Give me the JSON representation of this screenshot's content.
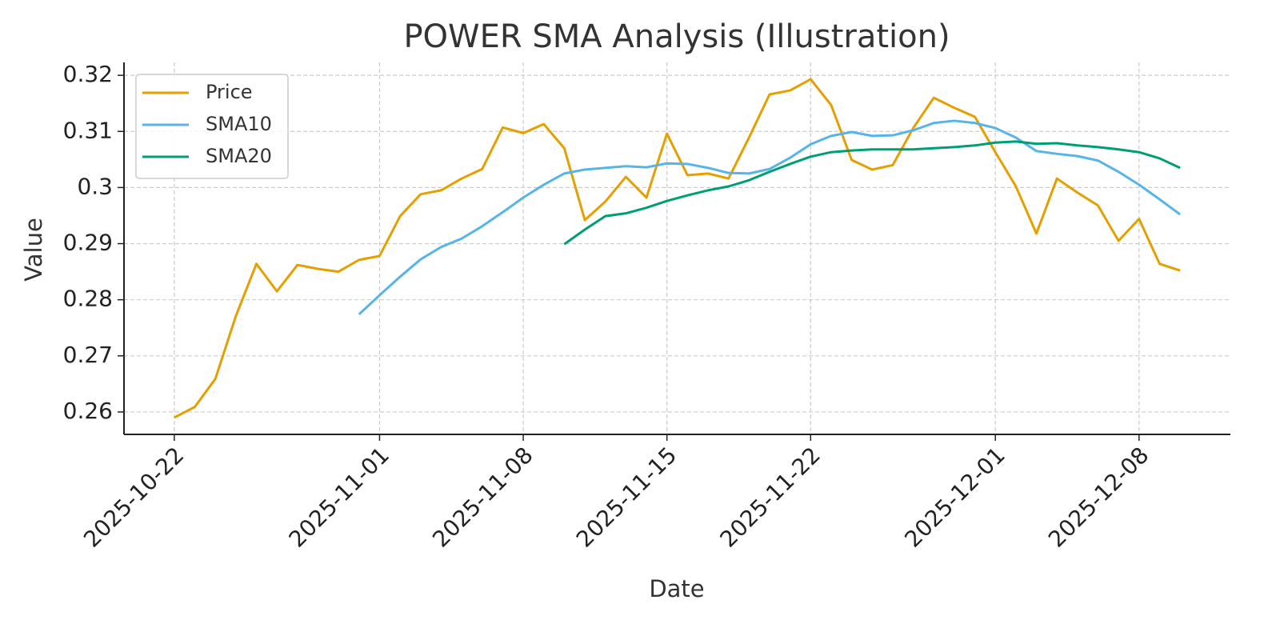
{
  "chart_data": {
    "type": "line",
    "title": "POWER SMA Analysis (Illustration)",
    "x_label": "Date",
    "y_label": "Value",
    "x": [
      "2025-10-22",
      "2025-10-23",
      "2025-10-24",
      "2025-10-25",
      "2025-10-26",
      "2025-10-27",
      "2025-10-28",
      "2025-10-29",
      "2025-10-30",
      "2025-10-31",
      "2025-11-01",
      "2025-11-02",
      "2025-11-03",
      "2025-11-04",
      "2025-11-05",
      "2025-11-06",
      "2025-11-07",
      "2025-11-08",
      "2025-11-09",
      "2025-11-10",
      "2025-11-11",
      "2025-11-12",
      "2025-11-13",
      "2025-11-14",
      "2025-11-15",
      "2025-11-16",
      "2025-11-17",
      "2025-11-18",
      "2025-11-19",
      "2025-11-20",
      "2025-11-21",
      "2025-11-22",
      "2025-11-23",
      "2025-11-24",
      "2025-11-25",
      "2025-11-26",
      "2025-11-27",
      "2025-11-28",
      "2025-11-29",
      "2025-11-30",
      "2025-12-01",
      "2025-12-02",
      "2025-12-03",
      "2025-12-04",
      "2025-12-05",
      "2025-12-06",
      "2025-12-07",
      "2025-12-08",
      "2025-12-09",
      "2025-12-10"
    ],
    "series": [
      {
        "name": "Price",
        "color": "#E69F00",
        "values": [
          0.259,
          0.2609,
          0.2659,
          0.2771,
          0.2864,
          0.2815,
          0.2862,
          0.2855,
          0.285,
          0.2871,
          0.2878,
          0.2949,
          0.2988,
          0.2995,
          0.3016,
          0.3033,
          0.3107,
          0.3097,
          0.3113,
          0.307,
          0.2942,
          0.2975,
          0.3019,
          0.2982,
          0.3096,
          0.3022,
          0.3025,
          0.3016,
          0.3089,
          0.3166,
          0.3173,
          0.3193,
          0.3147,
          0.3049,
          0.3032,
          0.304,
          0.3106,
          0.316,
          0.3142,
          0.3126,
          0.3063,
          0.3002,
          0.2918,
          0.3016,
          0.2991,
          0.2968,
          0.2905,
          0.2944,
          0.2864,
          0.2852
        ]
      },
      {
        "name": "SMA10",
        "color": "#56B4E9",
        "values": [
          null,
          null,
          null,
          null,
          null,
          null,
          null,
          null,
          null,
          0.2774,
          0.2808,
          0.2841,
          0.2872,
          0.2894,
          0.2909,
          0.2931,
          0.2956,
          0.2982,
          0.3005,
          0.3025,
          0.3032,
          0.3035,
          0.3038,
          0.3036,
          0.3043,
          0.3042,
          0.3035,
          0.3026,
          0.3025,
          0.3033,
          0.3053,
          0.3077,
          0.3092,
          0.3099,
          0.3092,
          0.3093,
          0.3102,
          0.3115,
          0.3119,
          0.3115,
          0.3106,
          0.3089,
          0.3065,
          0.306,
          0.3056,
          0.3048,
          0.3028,
          0.3005,
          0.2979,
          0.2952
        ]
      },
      {
        "name": "SMA20",
        "color": "#009E73",
        "values": [
          null,
          null,
          null,
          null,
          null,
          null,
          null,
          null,
          null,
          null,
          null,
          null,
          null,
          null,
          null,
          null,
          null,
          null,
          null,
          0.2899,
          0.2925,
          0.2949,
          0.2954,
          0.2964,
          0.2976,
          0.2986,
          0.2995,
          0.3002,
          0.3013,
          0.3028,
          0.3042,
          0.3055,
          0.3063,
          0.3066,
          0.3068,
          0.3068,
          0.3068,
          0.307,
          0.3072,
          0.3075,
          0.308,
          0.3082,
          0.3078,
          0.3079,
          0.3075,
          0.3072,
          0.3068,
          0.3063,
          0.3052,
          0.3035
        ]
      }
    ],
    "xlim": [
      "2025-10-22",
      "2025-12-10"
    ],
    "xticks": [
      "2025-10-22",
      "2025-11-01",
      "2025-11-08",
      "2025-11-15",
      "2025-11-22",
      "2025-12-01",
      "2025-12-08"
    ],
    "ylim": [
      0.256,
      0.3223
    ],
    "yticks": [
      0.26,
      0.27,
      0.28,
      0.29,
      0.3,
      0.31,
      0.32
    ],
    "grid": true,
    "legend": "upper-left"
  }
}
